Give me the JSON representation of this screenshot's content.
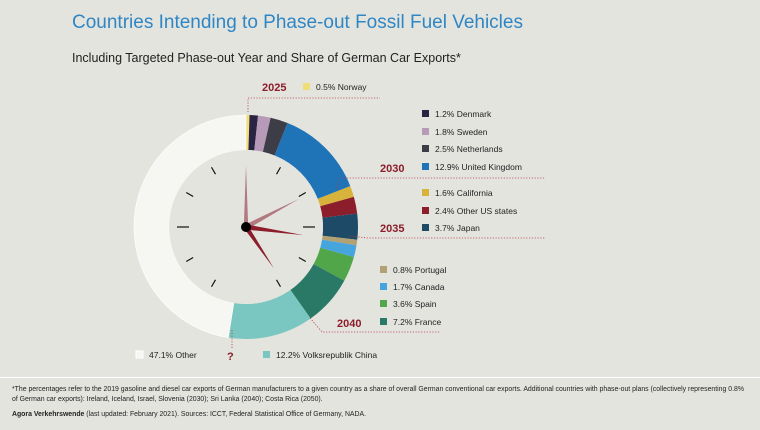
{
  "title": "Countries Intending to Phase-out Fossil Fuel Vehicles",
  "subtitle": "Including Targeted Phase-out Year and Share of German Car Exports*",
  "footnote": "*The percentages refer to the 2019 gasoline and diesel car exports of German manufacturers to a given country as a share of overall German conventional car exports. Additional countries with phase-out plans (collectively representing 0.8% of German car exports): Ireland, Iceland, Israel, Slovenia (2030); Sri Lanka (2040); Costa Rica (2050).",
  "source_org": "Agora Verkehrswende",
  "source_text": " (last updated: February 2021). Sources: ICCT, Federal Statistical Office of Germany, NADA.",
  "chart_data": {
    "type": "pie",
    "variant": "donut-clock",
    "unit": "%",
    "slices": [
      {
        "label": "0.5% Norway",
        "value": 0.5,
        "color": "#f0dc78",
        "year": "2025"
      },
      {
        "label": "1.2% Denmark",
        "value": 1.2,
        "color": "#2b2344",
        "year": "2030"
      },
      {
        "label": "1.8% Sweden",
        "value": 1.8,
        "color": "#b79ab7",
        "year": "2030"
      },
      {
        "label": "2.5% Netherlands",
        "value": 2.5,
        "color": "#3d3d48",
        "year": "2030"
      },
      {
        "label": "12.9% United Kingdom",
        "value": 12.9,
        "color": "#1f74b8",
        "year": "2030"
      },
      {
        "label": "1.6% California",
        "value": 1.6,
        "color": "#d8b33c",
        "year": "2035"
      },
      {
        "label": "2.4% Other US states",
        "value": 2.4,
        "color": "#8c1d2b",
        "year": "2035"
      },
      {
        "label": "3.7% Japan",
        "value": 3.7,
        "color": "#1d4a66",
        "year": "2035"
      },
      {
        "label": "0.8% Portugal",
        "value": 0.8,
        "color": "#b2a173",
        "year": "2040"
      },
      {
        "label": "1.7% Canada",
        "value": 1.7,
        "color": "#45a5dc",
        "year": "2040"
      },
      {
        "label": "3.6% Spain",
        "value": 3.6,
        "color": "#52a64a",
        "year": "2040"
      },
      {
        "label": "7.2% France",
        "value": 7.2,
        "color": "#2a7866",
        "year": "2040"
      },
      {
        "label": "12.2% Volksrepublik China",
        "value": 12.2,
        "color": "#7ac6c0",
        "year": "?"
      },
      {
        "label": "47.1% Other",
        "value": 47.1,
        "color": "#f6f6f2",
        "year": ""
      }
    ],
    "year_markers": [
      "2025",
      "2030",
      "2035",
      "2040",
      "?"
    ]
  },
  "colors": {
    "title": "#2f86c4",
    "year": "#8c1d2b",
    "leader": "#b23a44",
    "clock_face": "#e4e4df",
    "hand_hour": "#b27a80",
    "hand_red": "#8c1d2b"
  }
}
